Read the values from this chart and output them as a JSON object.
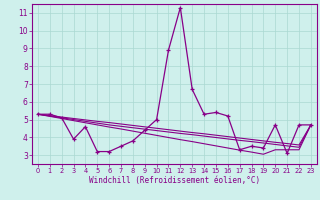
{
  "xlabel": "Windchill (Refroidissement éolien,°C)",
  "bg_color": "#cff0ec",
  "grid_color": "#aad8d2",
  "line_color": "#880088",
  "spine_color": "#880088",
  "xlim": [
    -0.5,
    23.5
  ],
  "ylim": [
    2.5,
    11.5
  ],
  "xticks": [
    0,
    1,
    2,
    3,
    4,
    5,
    6,
    7,
    8,
    9,
    10,
    11,
    12,
    13,
    14,
    15,
    16,
    17,
    18,
    19,
    20,
    21,
    22,
    23
  ],
  "yticks": [
    3,
    4,
    5,
    6,
    7,
    8,
    9,
    10,
    11
  ],
  "x": [
    0,
    1,
    2,
    3,
    4,
    5,
    6,
    7,
    8,
    9,
    10,
    11,
    12,
    13,
    14,
    15,
    16,
    17,
    18,
    19,
    20,
    21,
    22,
    23
  ],
  "y_main": [
    5.3,
    5.3,
    5.1,
    3.9,
    4.6,
    3.2,
    3.2,
    3.5,
    3.8,
    4.4,
    5.0,
    8.9,
    11.3,
    6.7,
    5.3,
    5.4,
    5.2,
    3.3,
    3.5,
    3.4,
    4.7,
    3.1,
    4.7,
    4.7
  ],
  "y_trend1": [
    5.3,
    5.18,
    5.06,
    4.94,
    4.82,
    4.7,
    4.58,
    4.47,
    4.35,
    4.23,
    4.11,
    3.99,
    3.87,
    3.76,
    3.64,
    3.52,
    3.4,
    3.28,
    3.17,
    3.05,
    3.3,
    3.3,
    3.3,
    4.7
  ],
  "y_trend2": [
    5.3,
    5.2,
    5.1,
    5.0,
    4.9,
    4.8,
    4.7,
    4.62,
    4.54,
    4.46,
    4.38,
    4.3,
    4.22,
    4.15,
    4.07,
    3.99,
    3.91,
    3.83,
    3.76,
    3.68,
    3.6,
    3.52,
    3.44,
    4.7
  ],
  "y_trend3": [
    5.3,
    5.22,
    5.14,
    5.06,
    4.98,
    4.9,
    4.83,
    4.75,
    4.67,
    4.59,
    4.51,
    4.43,
    4.35,
    4.27,
    4.2,
    4.12,
    4.04,
    3.96,
    3.88,
    3.8,
    3.72,
    3.65,
    3.57,
    4.7
  ]
}
